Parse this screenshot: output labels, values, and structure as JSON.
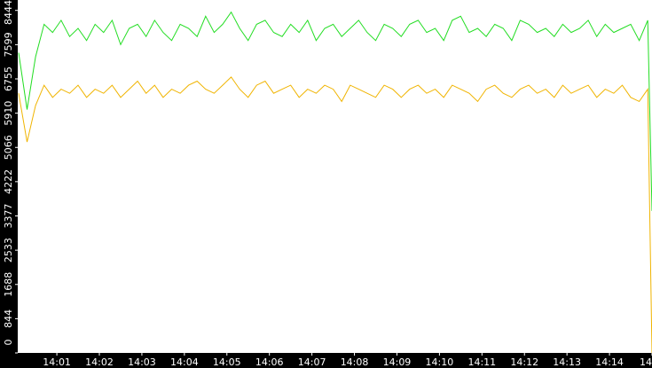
{
  "chart_data": {
    "type": "line",
    "x": [
      0.1,
      0.3,
      0.5,
      0.7,
      0.9,
      1.1,
      1.3,
      1.5,
      1.7,
      1.9,
      2.1,
      2.3,
      2.5,
      2.7,
      2.9,
      3.1,
      3.3,
      3.5,
      3.7,
      3.9,
      4.1,
      4.3,
      4.5,
      4.7,
      4.9,
      5.1,
      5.3,
      5.5,
      5.7,
      5.9,
      6.1,
      6.3,
      6.5,
      6.7,
      6.9,
      7.1,
      7.3,
      7.5,
      7.7,
      7.9,
      8.1,
      8.3,
      8.5,
      8.7,
      8.9,
      9.1,
      9.3,
      9.5,
      9.7,
      9.9,
      10.1,
      10.3,
      10.5,
      10.7,
      10.9,
      11.1,
      11.3,
      11.5,
      11.7,
      11.9,
      12.1,
      12.3,
      12.5,
      12.7,
      12.9,
      13.1,
      13.3,
      13.5,
      13.7,
      13.9,
      14.1,
      14.3,
      14.5,
      14.7,
      14.9,
      15.0
    ],
    "series": [
      {
        "color": "#22dd22",
        "values": [
          7400,
          6000,
          7300,
          8100,
          7900,
          8200,
          7800,
          8000,
          7700,
          8100,
          7900,
          8200,
          7600,
          8000,
          8100,
          7800,
          8200,
          7900,
          7700,
          8100,
          8000,
          7800,
          8300,
          7900,
          8100,
          8400,
          8000,
          7700,
          8100,
          8200,
          7900,
          7800,
          8100,
          7900,
          8200,
          7700,
          8000,
          8100,
          7800,
          8000,
          8200,
          7900,
          7700,
          8100,
          8000,
          7800,
          8100,
          8200,
          7900,
          8000,
          7700,
          8200,
          8300,
          7900,
          8000,
          7800,
          8100,
          8000,
          7700,
          8200,
          8100,
          7900,
          8000,
          7800,
          8100,
          7900,
          8000,
          8200,
          7800,
          8100,
          7900,
          8000,
          8100,
          7700,
          8200,
          3500
        ]
      },
      {
        "color": "#f0b400",
        "values": [
          6400,
          5200,
          6100,
          6600,
          6300,
          6500,
          6400,
          6600,
          6300,
          6500,
          6400,
          6600,
          6300,
          6500,
          6700,
          6400,
          6600,
          6300,
          6500,
          6400,
          6600,
          6700,
          6500,
          6400,
          6600,
          6800,
          6500,
          6300,
          6600,
          6700,
          6400,
          6500,
          6600,
          6300,
          6500,
          6400,
          6600,
          6500,
          6200,
          6600,
          6500,
          6400,
          6300,
          6600,
          6500,
          6300,
          6500,
          6600,
          6400,
          6500,
          6300,
          6600,
          6500,
          6400,
          6200,
          6500,
          6600,
          6400,
          6300,
          6500,
          6600,
          6400,
          6500,
          6300,
          6600,
          6400,
          6500,
          6600,
          6300,
          6500,
          6400,
          6600,
          6300,
          6200,
          6500,
          0
        ]
      }
    ],
    "xlim": [
      0.08,
      15.0
    ],
    "ylim": [
      0,
      8700
    ],
    "yticks": [
      0,
      844,
      1688,
      2533,
      3377,
      4222,
      5066,
      5910,
      6755,
      7599,
      8444
    ],
    "xticks": [
      {
        "value": 1,
        "label": "14:01"
      },
      {
        "value": 2,
        "label": "14:02"
      },
      {
        "value": 3,
        "label": "14:03"
      },
      {
        "value": 4,
        "label": "14:04"
      },
      {
        "value": 5,
        "label": "14:05"
      },
      {
        "value": 6,
        "label": "14:06"
      },
      {
        "value": 7,
        "label": "14:07"
      },
      {
        "value": 8,
        "label": "14:08"
      },
      {
        "value": 9,
        "label": "14:09"
      },
      {
        "value": 10,
        "label": "14:10"
      },
      {
        "value": 11,
        "label": "14:11"
      },
      {
        "value": 12,
        "label": "14:12"
      },
      {
        "value": 13,
        "label": "14:13"
      },
      {
        "value": 14,
        "label": "14:14"
      },
      {
        "value": 15,
        "label": "14"
      }
    ]
  }
}
